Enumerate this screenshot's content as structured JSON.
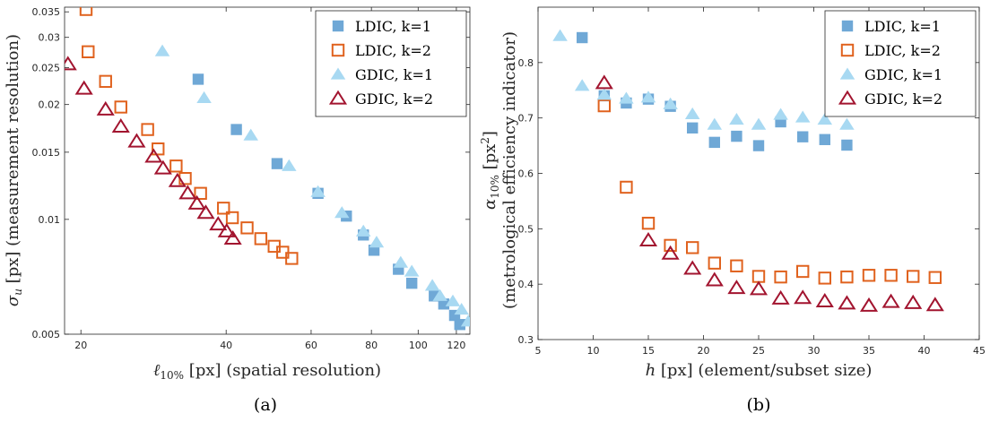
{
  "colors": {
    "ldic_k1": "#6FA8D6",
    "ldic_k2": "#E0621E",
    "gdic_k1": "#A8D9F2",
    "gdic_k2": "#A2142F"
  },
  "chart_data": [
    {
      "type": "scatter",
      "panel_label": "(a)",
      "xlabel": "ℓ10% [px] (spatial resolution)",
      "ylabel": "σu [px] (measurement resolution)",
      "xscale": "log",
      "yscale": "log",
      "xlim": [
        18.5,
        128
      ],
      "ylim": [
        0.005,
        0.036
      ],
      "xticks": [
        20,
        40,
        60,
        80,
        100,
        120
      ],
      "yticks": [
        0.005,
        0.01,
        0.015,
        0.02,
        0.025,
        0.03,
        0.035
      ],
      "grid": false,
      "legend": "top-right",
      "series": [
        {
          "name": "LDIC, k=1",
          "marker": "square-filled",
          "color_key": "ldic_k1",
          "points": [
            [
              35,
              0.0233
            ],
            [
              42,
              0.0172
            ],
            [
              51,
              0.014
            ],
            [
              62,
              0.0117
            ],
            [
              71,
              0.0102
            ],
            [
              77,
              0.0091
            ],
            [
              81,
              0.0083
            ],
            [
              91,
              0.0074
            ],
            [
              97,
              0.0068
            ],
            [
              108,
              0.0063
            ],
            [
              113,
              0.006
            ],
            [
              119,
              0.0056
            ],
            [
              122,
              0.0053
            ]
          ]
        },
        {
          "name": "LDIC, k=2",
          "marker": "square-open",
          "color_key": "ldic_k2",
          "points": [
            [
              20.5,
              0.0355
            ],
            [
              20.7,
              0.0275
            ],
            [
              22.5,
              0.023
            ],
            [
              24.2,
              0.0197
            ],
            [
              27.5,
              0.0172
            ],
            [
              28.9,
              0.0153
            ],
            [
              31.5,
              0.0138
            ],
            [
              32.9,
              0.0128
            ],
            [
              35.4,
              0.0117
            ],
            [
              39.5,
              0.0107
            ],
            [
              41.2,
              0.0101
            ],
            [
              44.2,
              0.0095
            ],
            [
              47.2,
              0.0089
            ],
            [
              50.3,
              0.0085
            ],
            [
              52.4,
              0.0082
            ],
            [
              54.7,
              0.0079
            ]
          ]
        },
        {
          "name": "GDIC, k=1",
          "marker": "triangle-filled",
          "color_key": "gdic_k1",
          "points": [
            [
              29.5,
              0.0276
            ],
            [
              36,
              0.0208
            ],
            [
              45,
              0.0166
            ],
            [
              54,
              0.0138
            ],
            [
              62,
              0.0118
            ],
            [
              69.5,
              0.0104
            ],
            [
              77,
              0.0093
            ],
            [
              82,
              0.0087
            ],
            [
              92,
              0.0077
            ],
            [
              97,
              0.0073
            ],
            [
              107,
              0.0067
            ],
            [
              111,
              0.0063
            ],
            [
              118,
              0.0061
            ],
            [
              123,
              0.0058
            ],
            [
              127,
              0.0054
            ]
          ]
        },
        {
          "name": "GDIC, k=2",
          "marker": "triangle-open",
          "color_key": "gdic_k2",
          "points": [
            [
              18.8,
              0.0255
            ],
            [
              20.3,
              0.022
            ],
            [
              22.5,
              0.0194
            ],
            [
              24.2,
              0.0175
            ],
            [
              26.1,
              0.016
            ],
            [
              28.3,
              0.0146
            ],
            [
              29.6,
              0.0136
            ],
            [
              31.7,
              0.0126
            ],
            [
              33.3,
              0.0117
            ],
            [
              34.8,
              0.011
            ],
            [
              36.3,
              0.0104
            ],
            [
              38.5,
              0.0097
            ],
            [
              40.1,
              0.0093
            ],
            [
              41.3,
              0.0089
            ]
          ]
        }
      ]
    },
    {
      "type": "scatter",
      "panel_label": "(b)",
      "xlabel": "h [px] (element/subset size)",
      "ylabel": "α10% [px²]",
      "ylabel2": "(metrological efficiency indicator)",
      "xlim": [
        5,
        45
      ],
      "ylim": [
        0.3,
        0.9
      ],
      "xticks": [
        5,
        10,
        15,
        20,
        25,
        30,
        35,
        40,
        45
      ],
      "yticks": [
        0.3,
        0.4,
        0.5,
        0.6,
        0.7,
        0.8
      ],
      "grid": false,
      "legend": "top-right",
      "series": [
        {
          "name": "LDIC, k=1",
          "marker": "square-filled",
          "color_key": "ldic_k1",
          "points": [
            [
              9,
              0.845
            ],
            [
              11,
              0.74
            ],
            [
              13,
              0.727
            ],
            [
              15,
              0.734
            ],
            [
              17,
              0.721
            ],
            [
              19,
              0.682
            ],
            [
              21,
              0.656
            ],
            [
              23,
              0.667
            ],
            [
              25,
              0.65
            ],
            [
              27,
              0.693
            ],
            [
              29,
              0.666
            ],
            [
              31,
              0.661
            ],
            [
              33,
              0.651
            ]
          ]
        },
        {
          "name": "LDIC, k=2",
          "marker": "square-open",
          "color_key": "ldic_k2",
          "points": [
            [
              11,
              0.722
            ],
            [
              13,
              0.575
            ],
            [
              15,
              0.51
            ],
            [
              17,
              0.47
            ],
            [
              19,
              0.466
            ],
            [
              21,
              0.438
            ],
            [
              23,
              0.433
            ],
            [
              25,
              0.414
            ],
            [
              27,
              0.413
            ],
            [
              29,
              0.423
            ],
            [
              31,
              0.411
            ],
            [
              33,
              0.413
            ],
            [
              35,
              0.416
            ],
            [
              37,
              0.416
            ],
            [
              39,
              0.414
            ],
            [
              41,
              0.412
            ]
          ]
        },
        {
          "name": "GDIC, k=1",
          "marker": "triangle-filled",
          "color_key": "gdic_k1",
          "points": [
            [
              7,
              0.848
            ],
            [
              9,
              0.758
            ],
            [
              11,
              0.742
            ],
            [
              13,
              0.735
            ],
            [
              15,
              0.737
            ],
            [
              17,
              0.725
            ],
            [
              19,
              0.707
            ],
            [
              21,
              0.688
            ],
            [
              23,
              0.697
            ],
            [
              25,
              0.688
            ],
            [
              27,
              0.706
            ],
            [
              29,
              0.701
            ],
            [
              31,
              0.697
            ],
            [
              33,
              0.688
            ]
          ]
        },
        {
          "name": "GDIC, k=2",
          "marker": "triangle-open",
          "color_key": "gdic_k2",
          "points": [
            [
              11,
              0.763
            ],
            [
              15,
              0.479
            ],
            [
              17,
              0.455
            ],
            [
              19,
              0.428
            ],
            [
              21,
              0.407
            ],
            [
              23,
              0.393
            ],
            [
              25,
              0.391
            ],
            [
              27,
              0.374
            ],
            [
              29,
              0.375
            ],
            [
              31,
              0.369
            ],
            [
              33,
              0.365
            ],
            [
              35,
              0.361
            ],
            [
              37,
              0.368
            ],
            [
              39,
              0.366
            ],
            [
              41,
              0.362
            ]
          ]
        }
      ]
    }
  ]
}
